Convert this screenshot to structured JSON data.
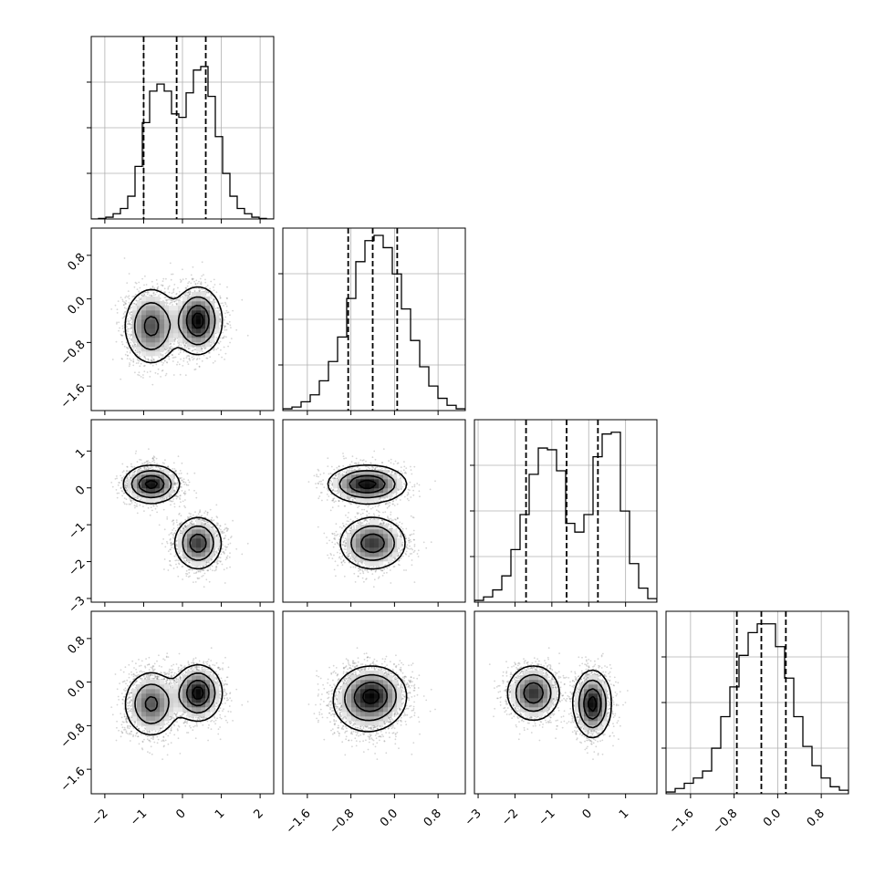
{
  "chart_data": {
    "type": "scatter",
    "title": "",
    "variables": [
      {
        "range": [
          -2.35,
          2.35
        ],
        "ticks": [
          -2,
          -1,
          0,
          1,
          2
        ],
        "tick_labels": [
          "−2",
          "−1",
          "0",
          "1",
          "2"
        ],
        "quantiles": [
          -1.0,
          -0.15,
          0.6
        ],
        "hist": [
          0,
          0.003,
          0.01,
          0.03,
          0.06,
          0.13,
          0.3,
          0.55,
          0.73,
          0.77,
          0.73,
          0.6,
          0.58,
          0.72,
          0.85,
          0.87,
          0.7,
          0.47,
          0.26,
          0.13,
          0.06,
          0.03,
          0.01,
          0.003,
          0
        ]
      },
      {
        "range": [
          -2.05,
          1.3
        ],
        "ticks": [
          -1.6,
          -0.8,
          0.0,
          0.8
        ],
        "tick_labels": [
          "−1.6",
          "−0.8",
          "0.0",
          "0.8"
        ],
        "quantiles": [
          -0.85,
          -0.4,
          0.05
        ],
        "hist": [
          0.01,
          0.02,
          0.05,
          0.09,
          0.17,
          0.28,
          0.42,
          0.64,
          0.85,
          0.97,
          1.0,
          0.93,
          0.78,
          0.58,
          0.4,
          0.25,
          0.14,
          0.07,
          0.03,
          0.01
        ]
      },
      {
        "range": [
          -3.1,
          1.85
        ],
        "ticks": [
          -3,
          -2,
          -1,
          0,
          1
        ],
        "tick_labels": [
          "−3",
          "−2",
          "−1",
          "0",
          "1"
        ],
        "quantiles": [
          -1.7,
          -0.6,
          0.25
        ],
        "hist": [
          0.01,
          0.03,
          0.07,
          0.15,
          0.3,
          0.5,
          0.73,
          0.88,
          0.87,
          0.75,
          0.45,
          0.4,
          0.5,
          0.83,
          0.96,
          0.97,
          0.52,
          0.22,
          0.08,
          0.02
        ]
      },
      {
        "range": [
          -2.05,
          1.3
        ],
        "ticks": [
          -1.6,
          -0.8,
          0.0,
          0.8
        ],
        "tick_labels": [
          "−1.6",
          "−0.8",
          "0.0",
          "0.8"
        ],
        "quantiles": [
          -0.75,
          -0.3,
          0.15
        ],
        "hist": [
          0.01,
          0.03,
          0.06,
          0.09,
          0.13,
          0.26,
          0.44,
          0.61,
          0.79,
          0.92,
          0.97,
          0.97,
          0.84,
          0.66,
          0.44,
          0.27,
          0.16,
          0.09,
          0.04,
          0.02
        ]
      }
    ],
    "mixture": [
      {
        "weight": 0.5,
        "mean": [
          -0.8,
          -0.5,
          0.1,
          -0.4
        ],
        "sd": [
          0.35,
          0.35,
          0.25,
          0.3
        ]
      },
      {
        "weight": 0.5,
        "mean": [
          0.4,
          -0.4,
          -1.5,
          -0.2
        ],
        "sd": [
          0.3,
          0.3,
          0.35,
          0.25
        ]
      }
    ],
    "n_samples": 3500,
    "grid": true
  }
}
